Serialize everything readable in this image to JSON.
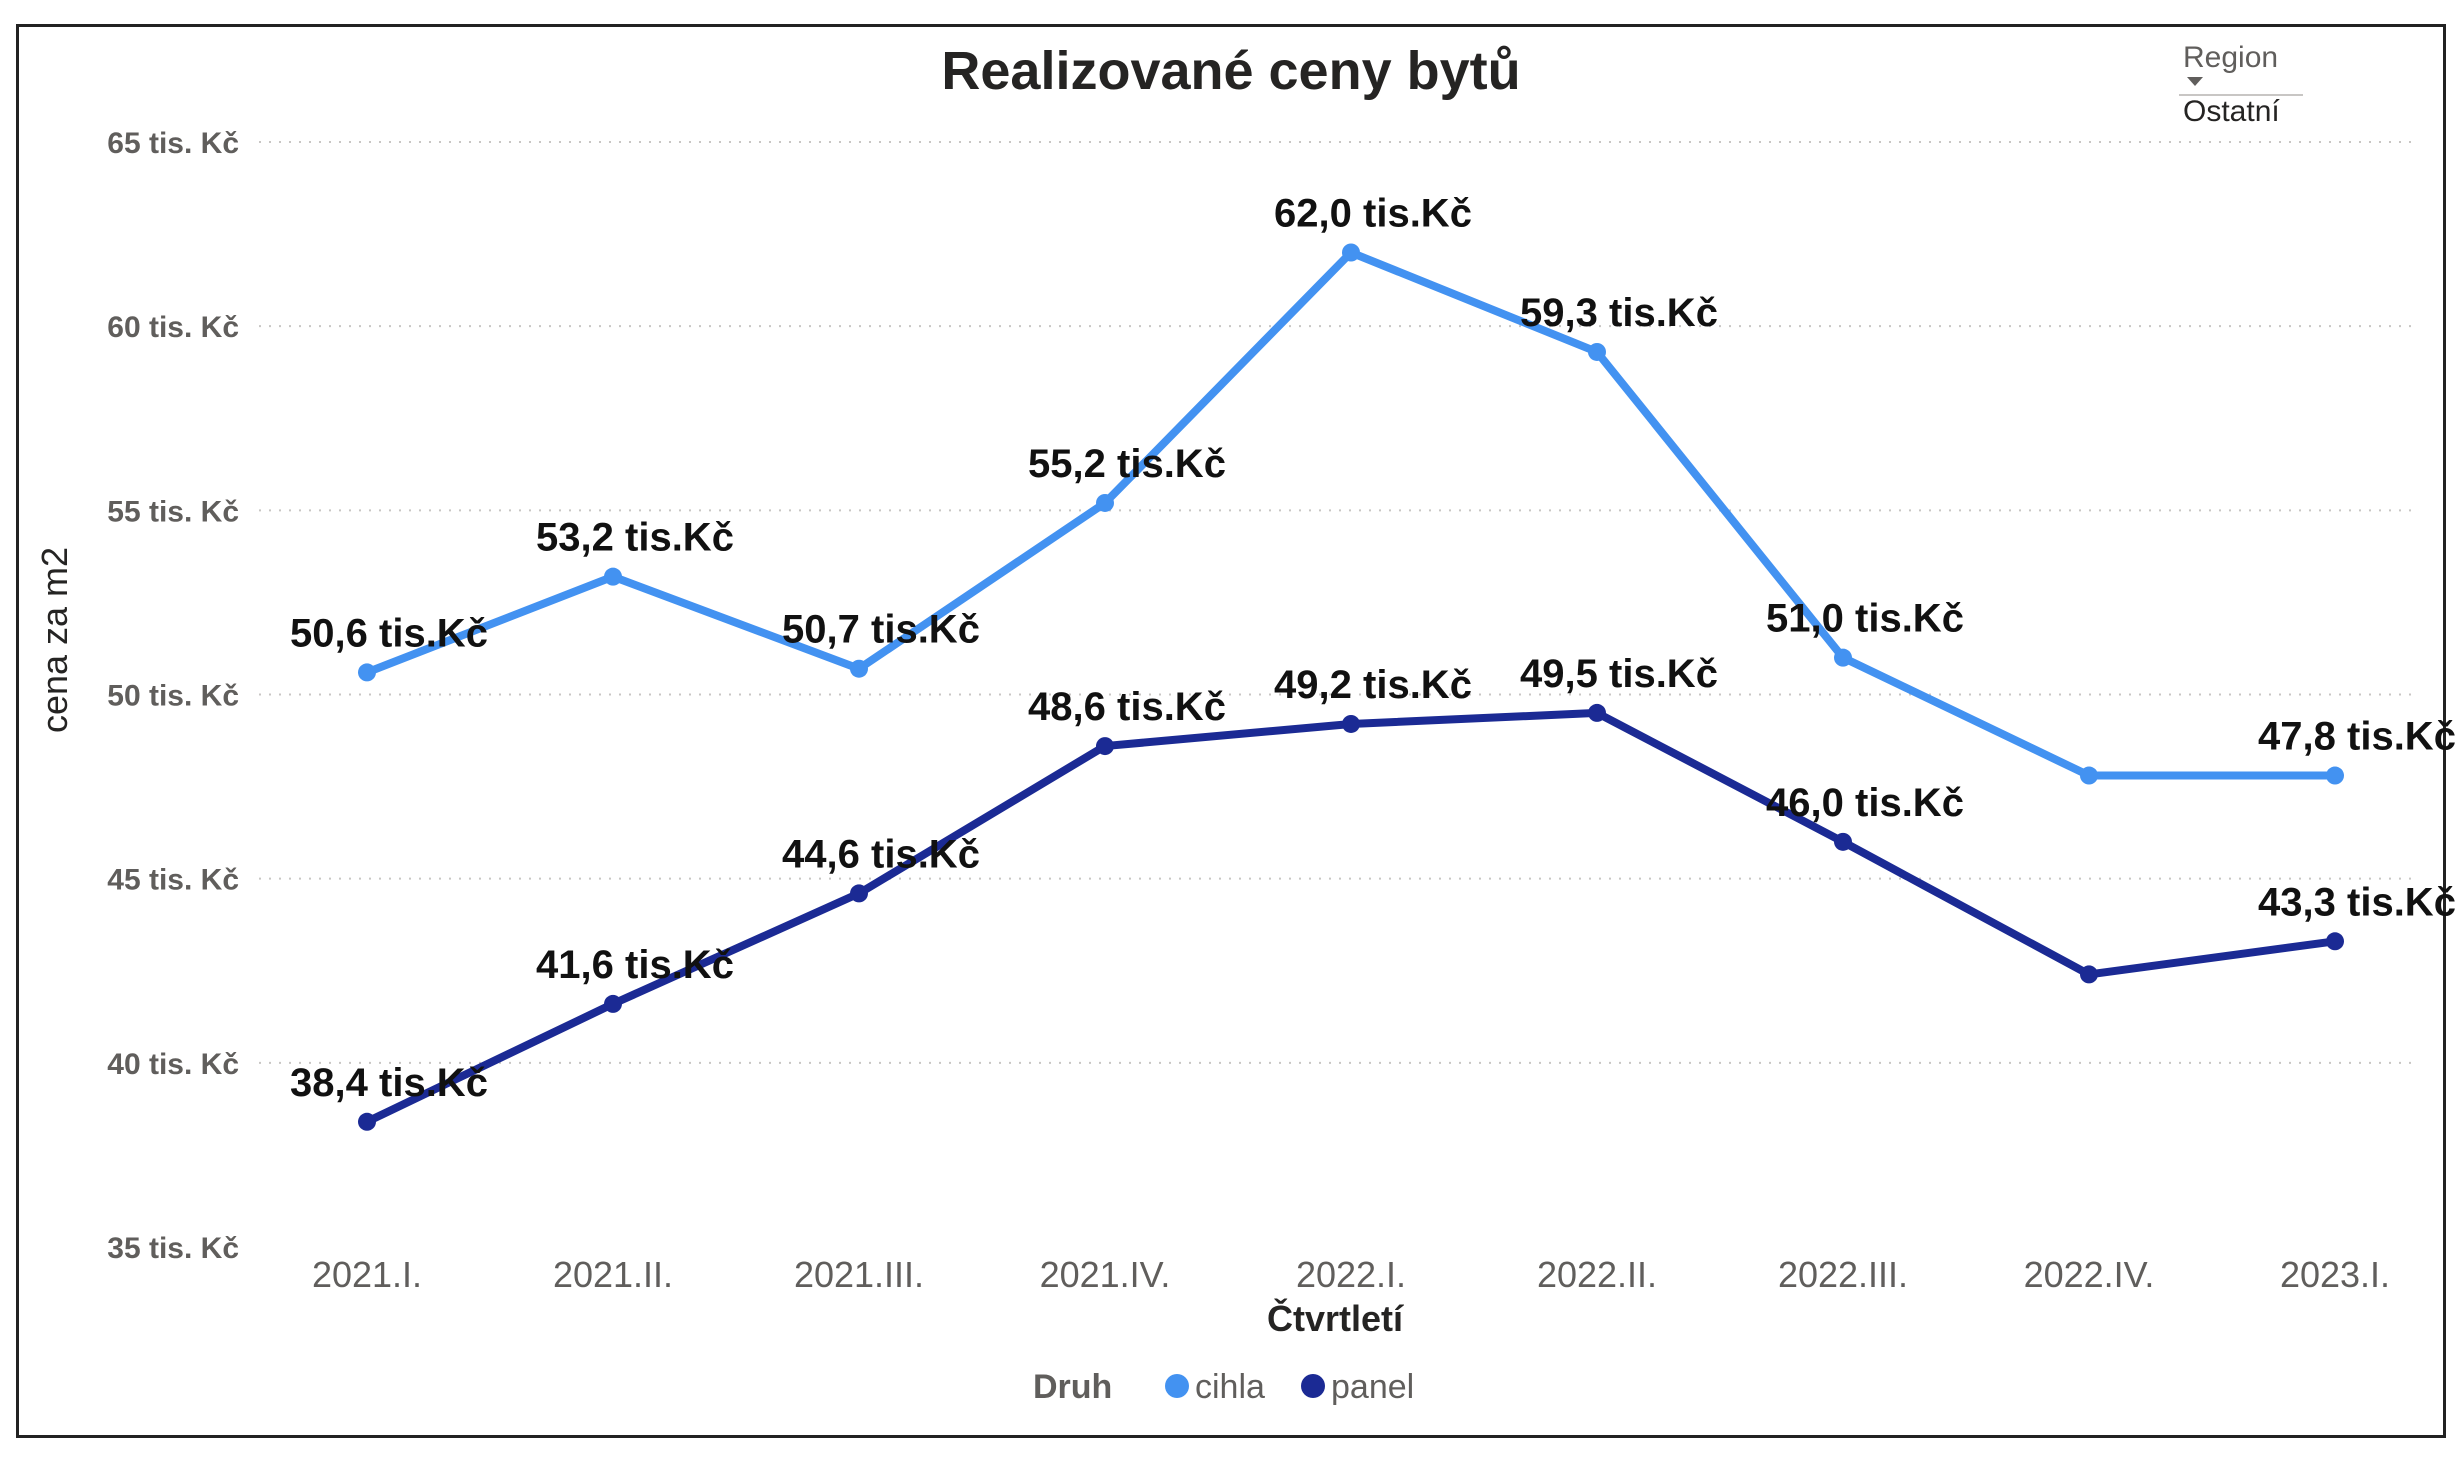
{
  "chart_data": {
    "type": "line",
    "title": "Realizované ceny bytů",
    "xlabel": "Čtvrtletí",
    "ylabel": "cena za m2",
    "categories": [
      "2021.I.",
      "2021.II.",
      "2021.III.",
      "2021.IV.",
      "2022.I.",
      "2022.II.",
      "2022.III.",
      "2022.IV.",
      "2023.I."
    ],
    "ylim": [
      35,
      65
    ],
    "yticks": [
      35,
      40,
      45,
      50,
      55,
      60,
      65
    ],
    "ytick_labels": [
      "35 tis. Kč",
      "40 tis. Kč",
      "45 tis. Kč",
      "50 tis. Kč",
      "55 tis. Kč",
      "60 tis. Kč",
      "65 tis. Kč"
    ],
    "grid": "horizontal dotted",
    "legend": {
      "title": "Druh",
      "placement": "bottom-center"
    },
    "series": [
      {
        "name": "cihla",
        "color": "#4392f1",
        "values": [
          50.6,
          53.2,
          50.7,
          55.2,
          62.0,
          59.3,
          51.0,
          47.8,
          47.8
        ],
        "labels": [
          "50,6 tis.Kč",
          "53,2 tis.Kč",
          "50,7 tis.Kč",
          "55,2 tis.Kč",
          "62,0 tis.Kč",
          "59,3 tis.Kč",
          "51,0 tis.Kč",
          null,
          "47,8 tis.Kč"
        ]
      },
      {
        "name": "panel",
        "color": "#1b2a94",
        "values": [
          38.4,
          41.6,
          44.6,
          48.6,
          49.2,
          49.5,
          46.0,
          42.4,
          43.3
        ],
        "labels": [
          "38,4 tis.Kč",
          "41,6 tis.Kč",
          "44,6 tis.Kč",
          "48,6 tis.Kč",
          "49,2 tis.Kč",
          "49,5 tis.Kč",
          "46,0 tis.Kč",
          null,
          "43,3 tis.Kč"
        ]
      }
    ]
  },
  "slicer": {
    "title": "Region",
    "value": "Ostatní",
    "icon": "dropdown-arrow-icon"
  }
}
